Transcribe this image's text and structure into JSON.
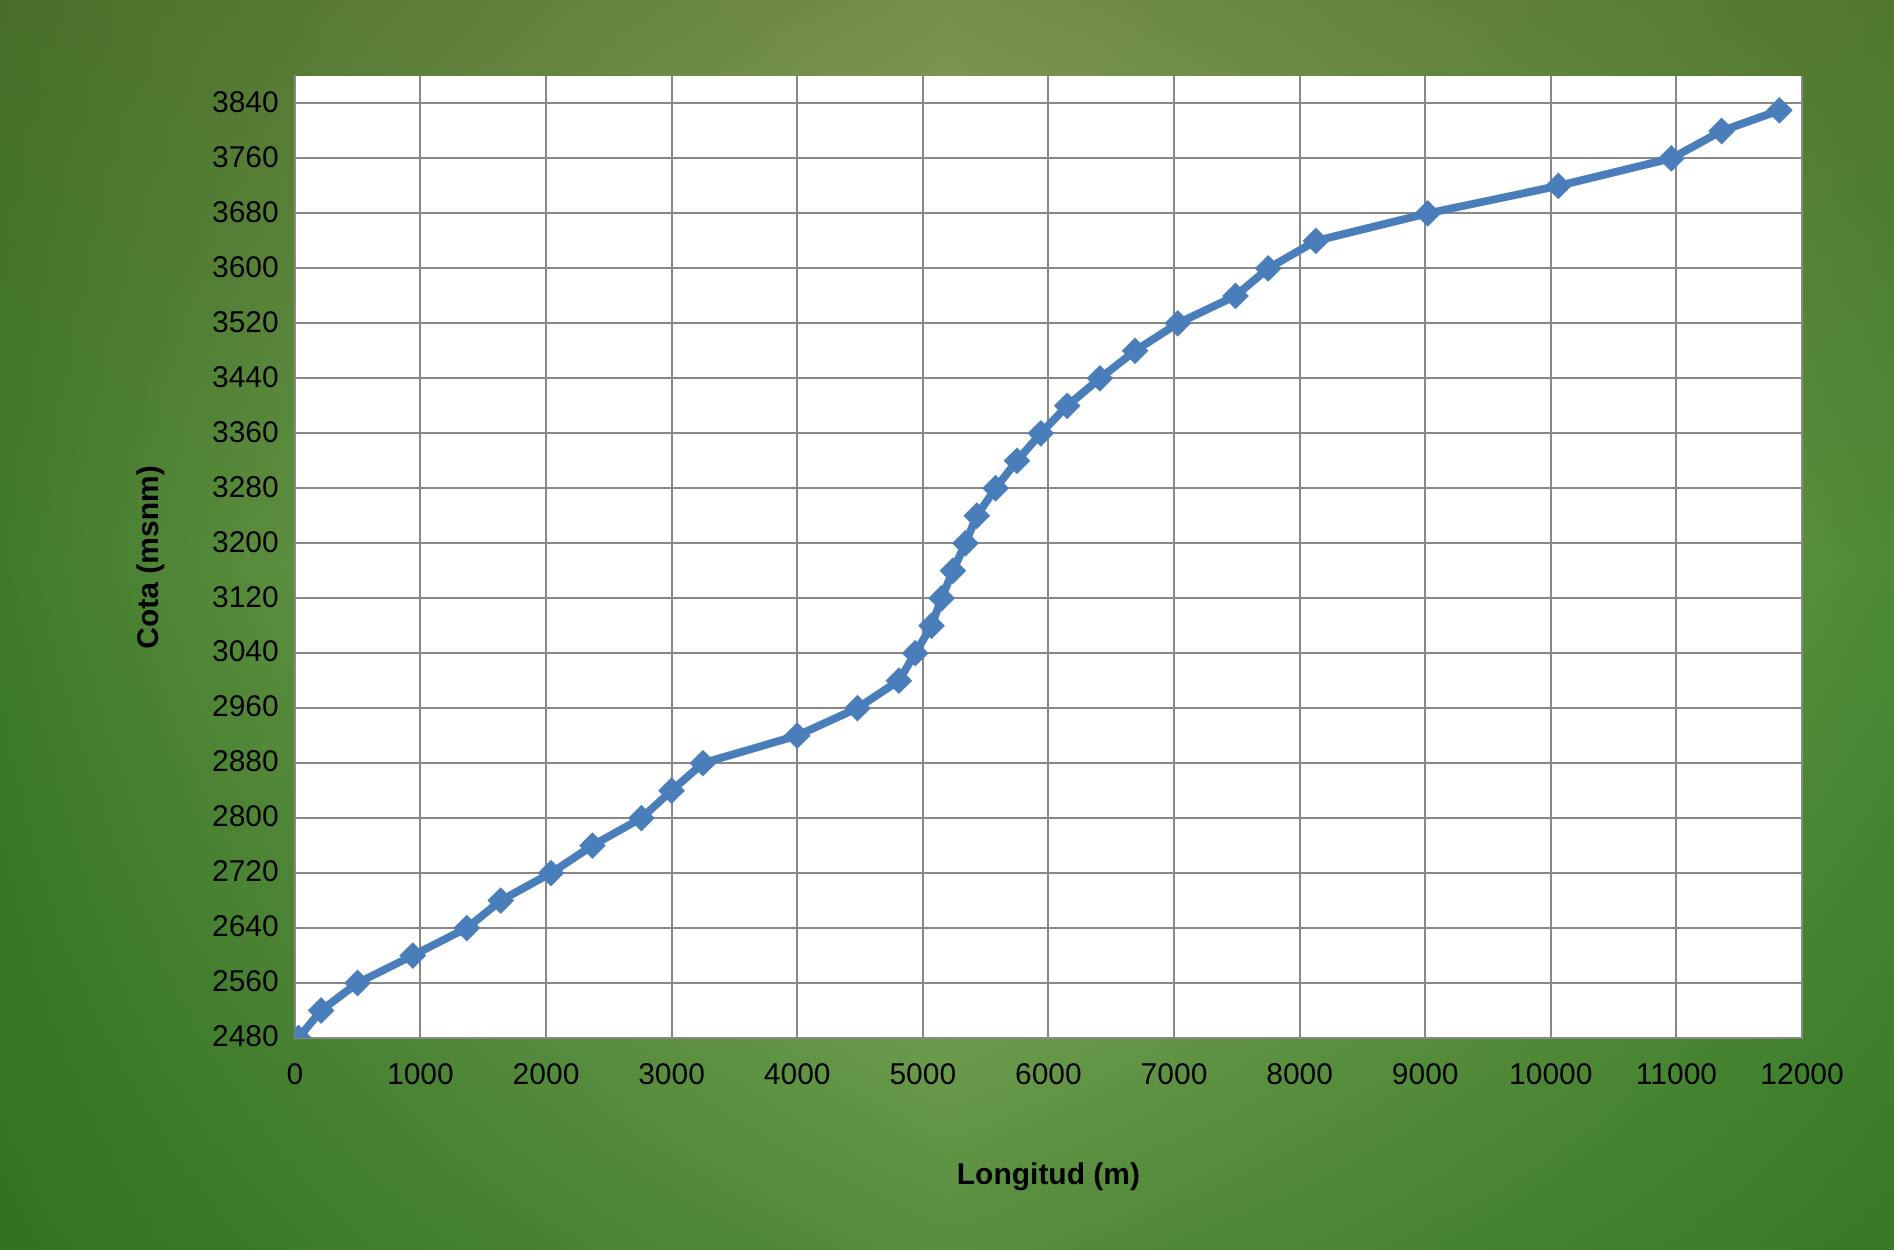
{
  "chart_data": {
    "type": "line",
    "xlabel": "Longitud (m)",
    "ylabel": "Cota (msnm)",
    "x": [
      30,
      210,
      500,
      940,
      1370,
      1640,
      2040,
      2370,
      2760,
      3000,
      3250,
      4000,
      4480,
      4810,
      4940,
      5070,
      5150,
      5240,
      5340,
      5430,
      5580,
      5750,
      5940,
      6150,
      6410,
      6690,
      7030,
      7490,
      7750,
      8130,
      9020,
      10060,
      10960,
      11360,
      11820
    ],
    "values": [
      2480,
      2520,
      2560,
      2600,
      2640,
      2680,
      2720,
      2760,
      2800,
      2840,
      2880,
      2920,
      2960,
      3000,
      3040,
      3080,
      3120,
      3160,
      3200,
      3240,
      3280,
      3320,
      3360,
      3400,
      3440,
      3480,
      3520,
      3560,
      3600,
      3640,
      3680,
      3720,
      3760,
      3800,
      3830
    ],
    "color": "#4a7ebb",
    "xlim": [
      0,
      12000
    ],
    "xticks": [
      0,
      1000,
      2000,
      3000,
      4000,
      5000,
      6000,
      7000,
      8000,
      9000,
      10000,
      11000,
      12000
    ],
    "ylim": [
      2480,
      3880
    ],
    "yticks": [
      2480,
      2560,
      2640,
      2720,
      2800,
      2880,
      2960,
      3040,
      3120,
      3200,
      3280,
      3360,
      3440,
      3520,
      3600,
      3680,
      3760,
      3840
    ],
    "grid": true,
    "marker": "diamond",
    "line_style": "solid",
    "legend": false
  }
}
